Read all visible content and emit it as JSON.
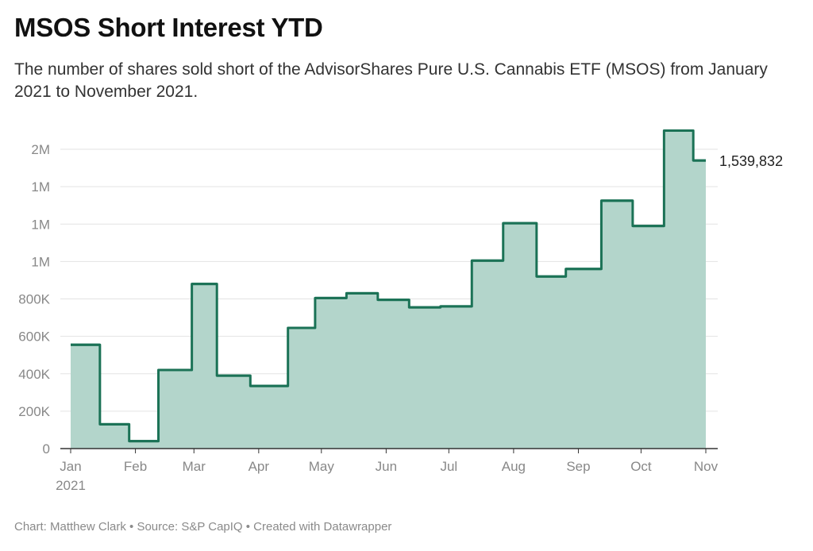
{
  "header": {
    "title": "MSOS Short Interest YTD",
    "subtitle": "The number of shares sold short of the AdvisorShares Pure U.S. Cannabis ETF (MSOS) from January 2021 to November 2021."
  },
  "footer": {
    "text": "Chart: Matthew Clark • Source: S&P CapIQ • Created with Datawrapper"
  },
  "colors": {
    "line": "#1b7256",
    "area": "#b3d5cb",
    "grid": "#e3e3e3",
    "axis": "#333333",
    "tick_label": "#888888"
  },
  "chart_data": {
    "type": "area",
    "title": "MSOS Short Interest YTD",
    "subtitle": "The number of shares sold short of the AdvisorShares Pure U.S. Cannabis ETF (MSOS) from January 2021 to November 2021.",
    "xlabel": "",
    "ylabel": "",
    "step": true,
    "ylim": [
      0,
      1600000
    ],
    "xlim": [
      "2021-01-01",
      "2021-11-01"
    ],
    "grid": true,
    "y_ticks": [
      {
        "value": 0,
        "label": "0"
      },
      {
        "value": 200000,
        "label": "200K"
      },
      {
        "value": 400000,
        "label": "400K"
      },
      {
        "value": 600000,
        "label": "600K"
      },
      {
        "value": 800000,
        "label": "800K"
      },
      {
        "value": 1000000,
        "label": "1M"
      },
      {
        "value": 1200000,
        "label": "1M"
      },
      {
        "value": 1400000,
        "label": "1M"
      },
      {
        "value": 1600000,
        "label": "2M"
      }
    ],
    "x_ticks": [
      {
        "date": "2021-01-01",
        "label": "Jan",
        "sublabel": "2021"
      },
      {
        "date": "2021-02-01",
        "label": "Feb"
      },
      {
        "date": "2021-03-01",
        "label": "Mar"
      },
      {
        "date": "2021-04-01",
        "label": "Apr"
      },
      {
        "date": "2021-05-01",
        "label": "May"
      },
      {
        "date": "2021-06-01",
        "label": "Jun"
      },
      {
        "date": "2021-07-01",
        "label": "Jul"
      },
      {
        "date": "2021-08-01",
        "label": "Aug"
      },
      {
        "date": "2021-09-01",
        "label": "Sep"
      },
      {
        "date": "2021-10-01",
        "label": "Oct"
      },
      {
        "date": "2021-11-01",
        "label": "Nov"
      }
    ],
    "series": [
      {
        "values": [
          {
            "date": "2021-01-01",
            "value": 555000
          },
          {
            "date": "2021-01-15",
            "value": 130000
          },
          {
            "date": "2021-01-29",
            "value": 40000
          },
          {
            "date": "2021-02-12",
            "value": 420000
          },
          {
            "date": "2021-02-28",
            "value": 880000
          },
          {
            "date": "2021-03-12",
            "value": 390000
          },
          {
            "date": "2021-03-28",
            "value": 335000
          },
          {
            "date": "2021-04-15",
            "value": 645000
          },
          {
            "date": "2021-04-28",
            "value": 805000
          },
          {
            "date": "2021-05-13",
            "value": 830000
          },
          {
            "date": "2021-05-28",
            "value": 795000
          },
          {
            "date": "2021-06-12",
            "value": 755000
          },
          {
            "date": "2021-06-27",
            "value": 760000
          },
          {
            "date": "2021-07-12",
            "value": 1005000
          },
          {
            "date": "2021-07-27",
            "value": 1205000
          },
          {
            "date": "2021-08-12",
            "value": 920000
          },
          {
            "date": "2021-08-26",
            "value": 960000
          },
          {
            "date": "2021-09-12",
            "value": 1325000
          },
          {
            "date": "2021-09-27",
            "value": 1190000
          },
          {
            "date": "2021-10-12",
            "value": 1700000
          },
          {
            "date": "2021-10-26",
            "value": 1539832
          }
        ]
      }
    ],
    "end_label": {
      "date": "2021-11-01",
      "value": 1539832,
      "text": "1,539,832"
    }
  }
}
